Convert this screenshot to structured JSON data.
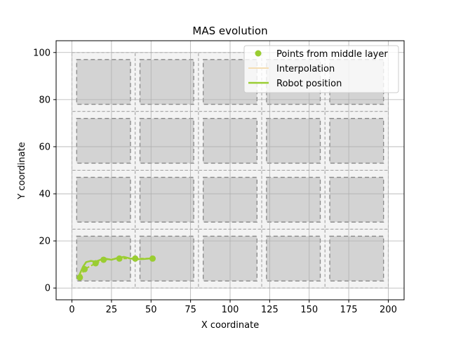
{
  "chart_data": {
    "type": "line",
    "title": "MAS evolution",
    "xlabel": "X coordinate",
    "ylabel": "Y coordinate",
    "xlim": [
      -10,
      210
    ],
    "ylim": [
      -5,
      105
    ],
    "x_ticks": [
      0,
      25,
      50,
      75,
      100,
      125,
      150,
      175,
      200
    ],
    "y_ticks": [
      0,
      20,
      40,
      60,
      80,
      100
    ],
    "grid": true,
    "legend_position": "top-right",
    "grid_cells": {
      "columns": [
        [
          0,
          40
        ],
        [
          40,
          80
        ],
        [
          80,
          120
        ],
        [
          120,
          160
        ],
        [
          160,
          200
        ]
      ],
      "rows": [
        [
          0,
          25
        ],
        [
          25,
          50
        ],
        [
          50,
          75
        ],
        [
          75,
          100
        ]
      ],
      "inner_x": [
        [
          3,
          37
        ],
        [
          43,
          77
        ],
        [
          83,
          117
        ],
        [
          123,
          157
        ],
        [
          163,
          197
        ]
      ],
      "inner_y": [
        [
          3,
          22
        ],
        [
          28,
          47
        ],
        [
          53,
          72
        ],
        [
          78,
          97
        ]
      ]
    },
    "colors": {
      "cell_fill": "#d3d3d3",
      "cell_outer_fill": "#f3f3f3",
      "points": "#9acd32",
      "interpolation": "#f5deb3",
      "robot": "#9acd32",
      "grid": "#b0b0b0"
    },
    "series": [
      {
        "name": "Points from middle layer",
        "kind": "markers",
        "points": [
          [
            5,
            4.5
          ],
          [
            8,
            8
          ],
          [
            15,
            10.5
          ],
          [
            20,
            12
          ],
          [
            30,
            12.5
          ],
          [
            40,
            12.5
          ],
          [
            51,
            12.5
          ]
        ]
      },
      {
        "name": "Interpolation",
        "kind": "line",
        "points": [
          [
            5,
            4.5
          ],
          [
            8,
            8
          ],
          [
            15,
            10.5
          ],
          [
            20,
            12
          ],
          [
            30,
            12.5
          ],
          [
            40,
            12.5
          ],
          [
            51,
            12.5
          ]
        ]
      },
      {
        "name": "Robot position",
        "kind": "line",
        "points": [
          [
            4,
            3.5
          ],
          [
            5,
            6
          ],
          [
            7,
            9
          ],
          [
            9,
            11
          ],
          [
            12,
            11.5
          ],
          [
            15,
            11.2
          ],
          [
            18,
            12
          ],
          [
            21,
            12.5
          ],
          [
            25,
            12
          ],
          [
            29,
            12.8
          ],
          [
            33,
            13.2
          ],
          [
            37,
            12.5
          ],
          [
            41,
            12.2
          ],
          [
            45,
            12.3
          ],
          [
            49,
            12.5
          ],
          [
            51,
            12.5
          ]
        ]
      }
    ]
  }
}
